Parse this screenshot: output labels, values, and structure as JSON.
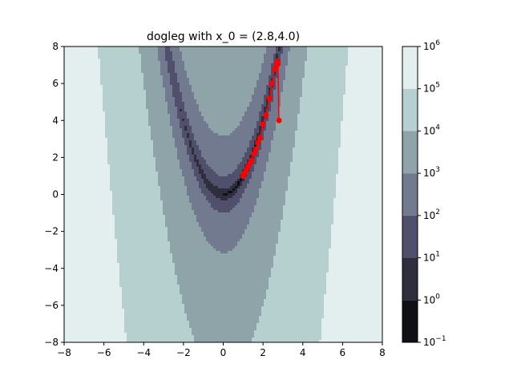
{
  "chart_data": {
    "type": "contour",
    "title": "dogleg with x_0 = (2.8,4.0)",
    "xlabel": "",
    "ylabel": "",
    "xlim": [
      -8,
      8
    ],
    "ylim": [
      -8,
      8
    ],
    "x_ticks": [
      "−8",
      "−6",
      "−4",
      "−2",
      "0",
      "2",
      "4",
      "6",
      "8"
    ],
    "y_ticks": [
      "−8",
      "−6",
      "−4",
      "−2",
      "0",
      "2",
      "4",
      "6",
      "8"
    ],
    "function": "rosenbrock",
    "contour_levels": [
      0.1,
      1,
      10,
      100,
      1000,
      10000,
      100000,
      1000000
    ],
    "contour_colors": [
      "#101014",
      "#2e2e3c",
      "#50506c",
      "#717a8e",
      "#8fa4a8",
      "#b6d0d0",
      "#e3eeee"
    ],
    "colorbar_ticks": [
      {
        "base": "10",
        "exp": "−1"
      },
      {
        "base": "10",
        "exp": "0"
      },
      {
        "base": "10",
        "exp": "1"
      },
      {
        "base": "10",
        "exp": "2"
      },
      {
        "base": "10",
        "exp": "3"
      },
      {
        "base": "10",
        "exp": "4"
      },
      {
        "base": "10",
        "exp": "5"
      },
      {
        "base": "10",
        "exp": "6"
      }
    ],
    "path_color": "#ff0000",
    "path": [
      {
        "x": 2.8,
        "y": 4.0
      },
      {
        "x": 2.75,
        "y": 7.1
      },
      {
        "x": 2.72,
        "y": 7.2
      },
      {
        "x": 2.7,
        "y": 7.0
      },
      {
        "x": 2.6,
        "y": 6.8
      },
      {
        "x": 2.45,
        "y": 6.0
      },
      {
        "x": 2.32,
        "y": 5.2
      },
      {
        "x": 2.15,
        "y": 4.3
      },
      {
        "x": 2.0,
        "y": 3.8
      },
      {
        "x": 1.85,
        "y": 3.05
      },
      {
        "x": 1.75,
        "y": 2.8
      },
      {
        "x": 1.65,
        "y": 2.45
      },
      {
        "x": 1.55,
        "y": 2.2
      },
      {
        "x": 1.42,
        "y": 1.85
      },
      {
        "x": 1.35,
        "y": 1.7
      },
      {
        "x": 1.25,
        "y": 1.5
      },
      {
        "x": 1.15,
        "y": 1.3
      },
      {
        "x": 1.08,
        "y": 1.15
      },
      {
        "x": 1.02,
        "y": 1.05
      },
      {
        "x": 1.0,
        "y": 1.0
      }
    ]
  }
}
